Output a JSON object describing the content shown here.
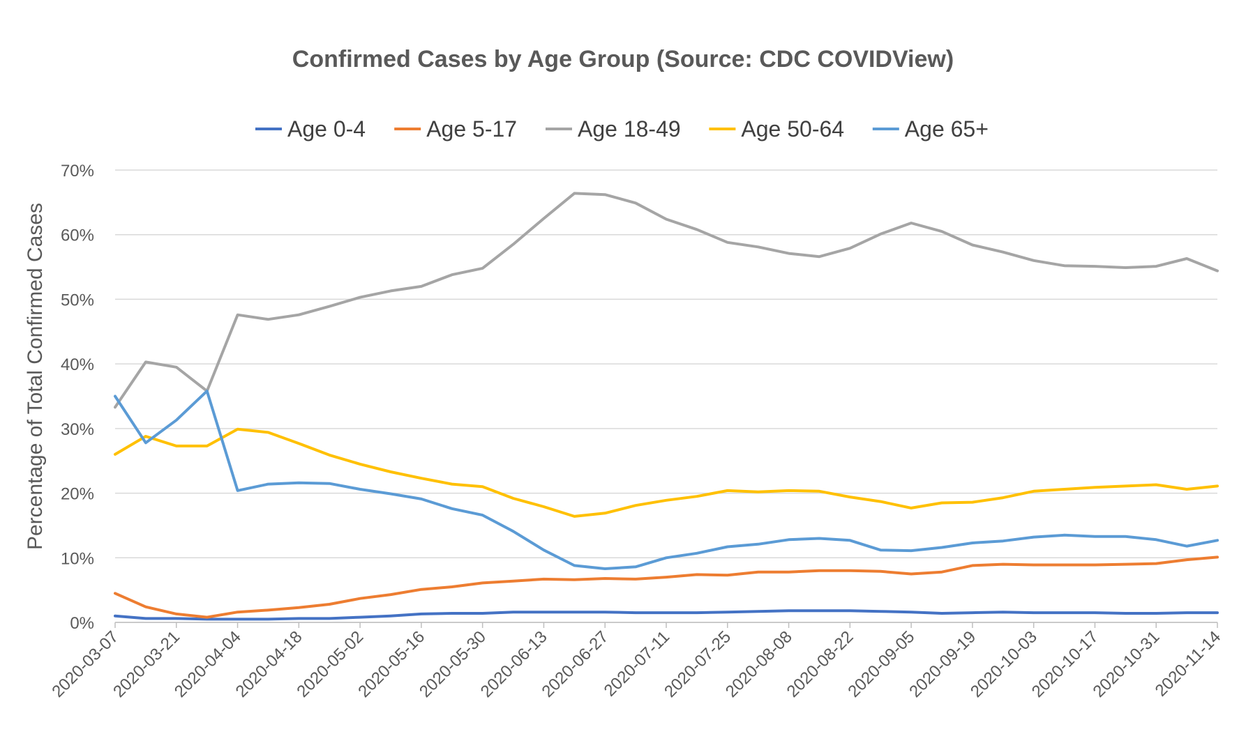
{
  "chart_data": {
    "type": "line",
    "title": "Confirmed Cases by Age Group (Source: CDC COVIDView)",
    "xlabel": "",
    "ylabel": "Percentage of Total Confirmed Cases",
    "ylim": [
      0,
      70
    ],
    "y_ticks": [
      "0%",
      "10%",
      "20%",
      "30%",
      "40%",
      "50%",
      "60%",
      "70%"
    ],
    "x_tick_labels": [
      "2020-03-07",
      "2020-03-21",
      "2020-04-04",
      "2020-04-18",
      "2020-05-02",
      "2020-05-16",
      "2020-05-30",
      "2020-06-13",
      "2020-06-27",
      "2020-07-11",
      "2020-07-25",
      "2020-08-08",
      "2020-08-22",
      "2020-09-05",
      "2020-09-19",
      "2020-10-03",
      "2020-10-17",
      "2020-10-31",
      "2020-11-14"
    ],
    "grid": "horizontal",
    "legend_position": "top",
    "x": [
      "2020-03-07",
      "2020-03-14",
      "2020-03-21",
      "2020-03-28",
      "2020-04-04",
      "2020-04-11",
      "2020-04-18",
      "2020-04-25",
      "2020-05-02",
      "2020-05-09",
      "2020-05-16",
      "2020-05-23",
      "2020-05-30",
      "2020-06-06",
      "2020-06-13",
      "2020-06-20",
      "2020-06-27",
      "2020-07-04",
      "2020-07-11",
      "2020-07-18",
      "2020-07-25",
      "2020-08-01",
      "2020-08-08",
      "2020-08-15",
      "2020-08-22",
      "2020-08-29",
      "2020-09-05",
      "2020-09-12",
      "2020-09-19",
      "2020-09-26",
      "2020-10-03",
      "2020-10-10",
      "2020-10-17",
      "2020-10-24",
      "2020-10-31",
      "2020-11-07",
      "2020-11-14"
    ],
    "series": [
      {
        "name": "Age 0-4",
        "color": "#4472C4",
        "values": [
          1.0,
          0.6,
          0.6,
          0.5,
          0.5,
          0.5,
          0.6,
          0.6,
          0.8,
          1.0,
          1.3,
          1.4,
          1.4,
          1.6,
          1.6,
          1.6,
          1.6,
          1.5,
          1.5,
          1.5,
          1.6,
          1.7,
          1.8,
          1.8,
          1.8,
          1.7,
          1.6,
          1.4,
          1.5,
          1.6,
          1.5,
          1.5,
          1.5,
          1.4,
          1.4,
          1.5,
          1.5
        ]
      },
      {
        "name": "Age 5-17",
        "color": "#ED7D31",
        "values": [
          4.5,
          2.4,
          1.3,
          0.8,
          1.6,
          1.9,
          2.3,
          2.8,
          3.7,
          4.3,
          5.1,
          5.5,
          6.1,
          6.4,
          6.7,
          6.6,
          6.8,
          6.7,
          7.0,
          7.4,
          7.3,
          7.8,
          7.8,
          8.0,
          8.0,
          7.9,
          7.5,
          7.8,
          8.8,
          9.0,
          8.9,
          8.9,
          8.9,
          9.0,
          9.1,
          9.7,
          10.1
        ]
      },
      {
        "name": "Age 18-49",
        "color": "#A5A5A5",
        "values": [
          33.3,
          40.3,
          39.5,
          35.8,
          47.6,
          46.9,
          47.6,
          48.9,
          50.3,
          51.3,
          52.0,
          53.8,
          54.8,
          58.5,
          62.5,
          66.4,
          66.2,
          64.9,
          62.4,
          60.8,
          58.8,
          58.1,
          57.1,
          56.6,
          57.9,
          60.1,
          61.8,
          60.5,
          58.4,
          57.3,
          56.0,
          55.2,
          55.1,
          54.9,
          55.1,
          56.3,
          54.4
        ]
      },
      {
        "name": "Age 50-64",
        "color": "#FFC000",
        "values": [
          26.0,
          28.8,
          27.3,
          27.3,
          29.9,
          29.4,
          27.7,
          25.9,
          24.5,
          23.3,
          22.3,
          21.4,
          21.0,
          19.2,
          17.9,
          16.4,
          16.9,
          18.1,
          18.9,
          19.5,
          20.4,
          20.2,
          20.4,
          20.3,
          19.4,
          18.7,
          17.7,
          18.5,
          18.6,
          19.3,
          20.3,
          20.6,
          20.9,
          21.1,
          21.3,
          20.6,
          21.1
        ]
      },
      {
        "name": "Age 65+",
        "color": "#5B9BD5",
        "values": [
          35.0,
          27.8,
          31.3,
          35.8,
          20.4,
          21.4,
          21.6,
          21.5,
          20.6,
          19.9,
          19.1,
          17.6,
          16.6,
          14.1,
          11.2,
          8.8,
          8.3,
          8.6,
          10.0,
          10.7,
          11.7,
          12.1,
          12.8,
          13.0,
          12.7,
          11.2,
          11.1,
          11.6,
          12.3,
          12.6,
          13.2,
          13.5,
          13.3,
          13.3,
          12.8,
          11.8,
          12.7
        ]
      }
    ]
  }
}
